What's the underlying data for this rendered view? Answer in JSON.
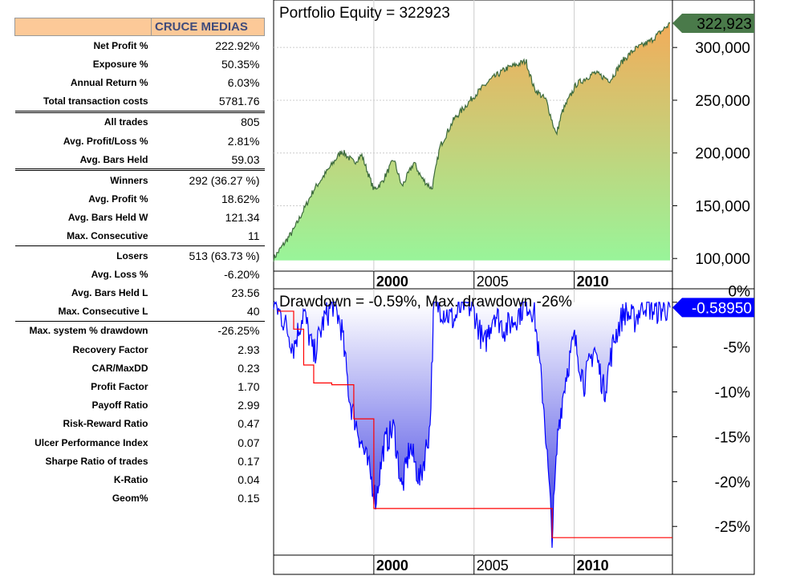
{
  "table": {
    "header": "CRUCE MEDIAS",
    "rows": [
      {
        "label": "Net Profit %",
        "value": "222.92%"
      },
      {
        "label": "Exposure %",
        "value": "50.35%"
      },
      {
        "label": "Annual Return %",
        "value": "6.03%"
      },
      {
        "label": "Total transaction costs",
        "value": "5781.76"
      },
      {
        "label": "All trades",
        "value": "805"
      },
      {
        "label": "Avg. Profit/Loss %",
        "value": "2.81%"
      },
      {
        "label": "Avg. Bars Held",
        "value": "59.03"
      },
      {
        "label": "Winners",
        "value": "292 (36.27 %)"
      },
      {
        "label": "Avg. Profit %",
        "value": "18.62%"
      },
      {
        "label": "Avg. Bars Held W",
        "value": "121.34"
      },
      {
        "label": "Max. Consecutive",
        "value": "11"
      },
      {
        "label": "Losers",
        "value": "513 (63.73 %)"
      },
      {
        "label": "Avg. Loss %",
        "value": "-6.20%"
      },
      {
        "label": "Avg. Bars Held L",
        "value": "23.56"
      },
      {
        "label": "Max. Consecutive L",
        "value": "40"
      },
      {
        "label": "Max. system % drawdown",
        "value": "-26.25%"
      },
      {
        "label": "Recovery Factor",
        "value": "2.93"
      },
      {
        "label": "CAR/MaxDD",
        "value": "0.23"
      },
      {
        "label": "Profit Factor",
        "value": "1.70"
      },
      {
        "label": "Payoff Ratio",
        "value": "2.99"
      },
      {
        "label": "Risk-Reward Ratio",
        "value": "0.47"
      },
      {
        "label": "Ulcer Performance Index",
        "value": "0.07"
      },
      {
        "label": "Sharpe Ratio of trades",
        "value": "0.17"
      },
      {
        "label": "K-Ratio",
        "value": "0.04"
      },
      {
        "label": "Geom%",
        "value": "0.15"
      }
    ]
  },
  "chart_data": [
    {
      "type": "area",
      "title": "Portfolio Equity = 322923",
      "last_value_label": "322,923",
      "xlim": [
        1995,
        2014.9
      ],
      "ylim": [
        88000,
        345000
      ],
      "x_ticks": [
        {
          "v": 2000,
          "label": "2000"
        },
        {
          "v": 2005,
          "label": "2005"
        },
        {
          "v": 2010,
          "label": "2010"
        }
      ],
      "y_ticks": [
        {
          "v": 100000,
          "label": "100,000"
        },
        {
          "v": 150000,
          "label": "150,000"
        },
        {
          "v": 200000,
          "label": "200,000"
        },
        {
          "v": 250000,
          "label": "250,000"
        },
        {
          "v": 300000,
          "label": "300,000"
        }
      ],
      "x": [
        1995.0,
        1996.0,
        1997.0,
        1998.4,
        1999.0,
        1999.4,
        2000.0,
        2000.4,
        2001.0,
        2001.4,
        2002.0,
        2002.4,
        2002.9,
        2003.3,
        2004.0,
        2005.0,
        2005.8,
        2006.6,
        2007.6,
        2008.0,
        2008.6,
        2009.1,
        2009.4,
        2010.1,
        2011.0,
        2011.8,
        2012.4,
        2013.0,
        2013.8,
        2014.8
      ],
      "values": [
        100000,
        127000,
        165000,
        202000,
        191000,
        198000,
        165000,
        172000,
        194000,
        168000,
        191000,
        176000,
        166000,
        206000,
        232000,
        254000,
        269000,
        280000,
        287000,
        261000,
        250000,
        217000,
        239000,
        265000,
        276000,
        269000,
        287000,
        298000,
        306000,
        322923
      ],
      "colors": {
        "line": "#3d6b3d",
        "fill_top": "#f2ac5a",
        "fill_bottom": "#98f59a",
        "label_bg": "#4a7a4a"
      }
    },
    {
      "type": "area",
      "title": "Drawdown = -0.59%, Max. drawdown -26%",
      "last_value_label": "-0.58950",
      "xlim": [
        1995,
        2014.9
      ],
      "ylim": [
        -28.2,
        1.5
      ],
      "x_ticks": [
        {
          "v": 2000,
          "label": "2000"
        },
        {
          "v": 2005,
          "label": "2005"
        },
        {
          "v": 2010,
          "label": "2010"
        }
      ],
      "y_ticks": [
        {
          "v": 0,
          "label": "0%"
        },
        {
          "v": -5,
          "label": "-5%"
        },
        {
          "v": -10,
          "label": "-10%"
        },
        {
          "v": -15,
          "label": "-15%"
        },
        {
          "v": -20,
          "label": "-20%"
        },
        {
          "v": -25,
          "label": "-25%"
        }
      ],
      "x": [
        1995.0,
        1995.5,
        1996.0,
        1996.5,
        1997.0,
        1997.5,
        1998.0,
        1998.4,
        1998.8,
        1999.3,
        1999.8,
        2000.1,
        2000.5,
        2001.0,
        2001.4,
        2001.8,
        2002.3,
        2002.8,
        2003.0,
        2003.5,
        2004.0,
        2004.5,
        2005.0,
        2005.5,
        2006.0,
        2006.5,
        2007.0,
        2007.6,
        2008.0,
        2008.5,
        2008.9,
        2009.2,
        2009.6,
        2010.0,
        2010.5,
        2011.0,
        2011.5,
        2012.0,
        2012.5,
        2013.0,
        2013.5,
        2014.0,
        2014.8
      ],
      "values": [
        0,
        -2,
        -5,
        -1,
        -6,
        -2,
        0,
        -3,
        -11,
        -15,
        -19,
        -22,
        -16,
        -14,
        -21,
        -16,
        -20,
        -14,
        0,
        -1,
        -2,
        0,
        -1,
        -5,
        -1,
        -3,
        -2,
        0,
        -1,
        -12,
        -26,
        -14,
        -8,
        -4,
        -9,
        -5,
        -10,
        -4,
        -1,
        -2,
        0,
        -1,
        -0.5895
      ],
      "max_dd_x": [
        1995.2,
        1996.0,
        1996.5,
        1997.0,
        1997.9,
        1999.0,
        2000.0,
        2008.9,
        2014.9
      ],
      "max_dd_values": [
        -1,
        -3,
        -7,
        -9,
        -9.2,
        -13,
        -23,
        -26.25,
        -26.25
      ],
      "colors": {
        "line": "#0000ff",
        "fill_top": "#ffffff",
        "fill_bottom": "#3030e0",
        "maxdd": "#ff0000",
        "label_bg": "#0000ff"
      }
    }
  ]
}
